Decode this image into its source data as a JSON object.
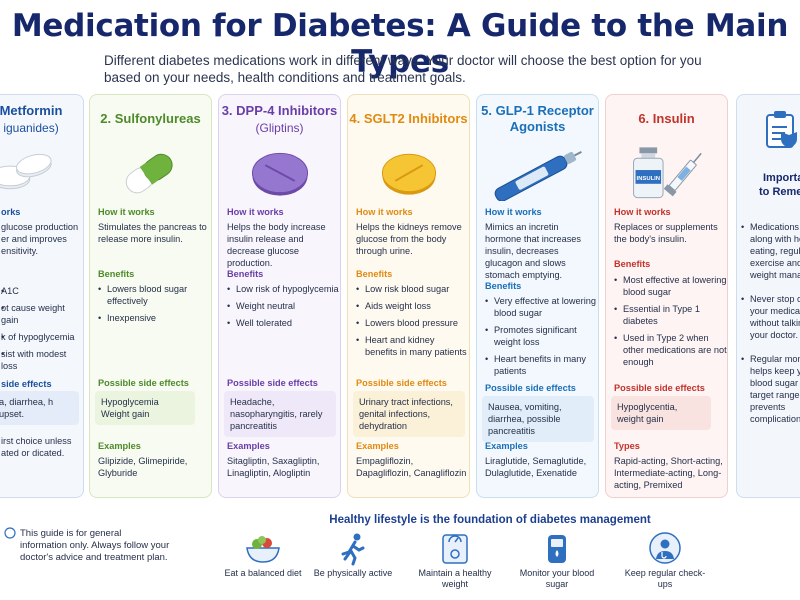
{
  "title": "Medication for Diabetes: A Guide to the Main Types",
  "intro": "Different diabetes medications work in different ways. Your doctor will choose the best option for you based on your needs, health conditions and treatment goals.",
  "colors": {
    "title": "#16286b",
    "metformin": "#1b4f9e",
    "sulfonylureas": "#4f8a2a",
    "dpp4": "#6a3ea8",
    "sglt2": "#e08a12",
    "glp1": "#1a6fb8",
    "insulin": "#c2332b"
  },
  "cards": {
    "metformin": {
      "head1": "Metformin",
      "head2": "iguanides)",
      "how_title": "orks",
      "how_text": "glucose production er and improves ensitivity.",
      "benefits": [
        "A1C",
        "ot cause weight gain",
        "k of hypoglycemia",
        "sist with modest loss"
      ],
      "side_title": "side effects",
      "side_text": "a, diarrhea, h upset.",
      "examples_text": "irst choice unless ated or dicated."
    },
    "sulfonylureas": {
      "head": "2. Sulfonylureas",
      "how_title": "How it works",
      "how_text": "Stimulates the pancreas to release more insulin.",
      "benefits_title": "Benefits",
      "benefits": [
        "Lowers blood sugar effectively",
        "Inexpensive"
      ],
      "side_title": "Possible side effects",
      "side_text": "Hypoglycemia Weight gain",
      "examples_title": "Examples",
      "examples_text": "Glipizide, Glimepiride, Glyburide"
    },
    "dpp4": {
      "head1": "3. DPP-4 Inhibitors",
      "head2": "(Gliptins)",
      "how_title": "How it works",
      "how_text": "Helps the body increase insulin release and decrease glucose production.",
      "benefits_title": "Benefits",
      "benefits": [
        "Low risk of hypoglycemia",
        "Weight neutral",
        "Well tolerated"
      ],
      "side_title": "Possible side effects",
      "side_text": "Headache, nasopharyngitis, rarely pancreatitis",
      "examples_title": "Examples",
      "examples_text": "Sitagliptin, Saxagliptin, Linagliptin, Alogliptin"
    },
    "sglt2": {
      "head": "4. SGLT2 Inhibitors",
      "how_title": "How it works",
      "how_text": "Helps the kidneys remove glucose from the body through urine.",
      "benefits_title": "Benefits",
      "benefits": [
        "Low risk blood sugar",
        "Aids weight loss",
        "Lowers blood pressure",
        "Heart and kidney benefits in many patients"
      ],
      "side_title": "Possible side effects",
      "side_text": "Urinary tract infections, genital infections, dehydration",
      "examples_title": "Examples",
      "examples_text": "Empagliflozin, Dapagliflozin, Canagliflozin"
    },
    "glp1": {
      "head1": "5. GLP-1 Receptor",
      "head2": "Agonists",
      "how_title": "How it works",
      "how_text": "Mimics an incretin hormone that increases insulin, decreases glucagon and slows stomach emptying.",
      "benefits_title": "Benefits",
      "benefits": [
        "Very effective at lowering blood sugar",
        "Promotes significant weight loss",
        "Heart benefits in many patients"
      ],
      "side_title": "Possible side effects",
      "side_text": "Nausea, vomiting, diarrhea, possible pancreatitis",
      "examples_title": "Examples",
      "examples_text": "Liraglutide, Semaglutide, Dulaglutide, Exenatide"
    },
    "insulin": {
      "head": "6. Insulin",
      "vial_label": "INSULIN",
      "how_title": "How it works",
      "how_text": "Replaces or supplements the body's insulin.",
      "benefits_title": "Benefits",
      "benefits": [
        "Most effective at lowering blood sugar",
        "Essential in Type 1 diabetes",
        "Used in Type 2 when other medications are not enough"
      ],
      "side_title": "Possible side effects",
      "side_text": "Hypoglycentia, weight gain",
      "types_title": "Types",
      "types_text": "Rapid-acting, Short-acting, Intermediate-acting, Long-acting, Premixed"
    },
    "important": {
      "head1": "Importa",
      "head2": "to Remem",
      "items": [
        "Medications w along with he eating, regula exercise and weight manag",
        "Never stop o your medicat without talkin your doctor.",
        "Regular mon helps keep y blood sugar target range prevents complication"
      ]
    }
  },
  "bottom": {
    "disclaimer": "This guide is for general information only. Always follow your doctor's advice and treatment plan.",
    "healthy_title": "Healthy lifestyle is the foundation of diabetes management",
    "tips": [
      "Eat a balanced diet",
      "Be physically active",
      "Maintain a healthy weight",
      "Monitor your blood sugar",
      "Keep regular check-ups"
    ]
  }
}
